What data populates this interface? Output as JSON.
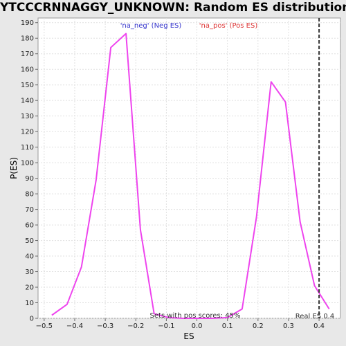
{
  "chart_data": {
    "type": "line",
    "title": "YTCCCRNNAGGY_UNKNOWN: Random ES distribution",
    "xlabel": "ES",
    "ylabel": "P(ES)",
    "xlim": [
      -0.52,
      0.47
    ],
    "ylim": [
      0,
      193
    ],
    "x_ticks": [
      -0.5,
      -0.4,
      -0.3,
      -0.2,
      -0.1,
      0.0,
      0.1,
      0.2,
      0.3,
      0.4
    ],
    "x_tick_labels": [
      "−0.5",
      "−0.4",
      "−0.3",
      "−0.2",
      "−0.1",
      "0.0",
      "0.1",
      "0.2",
      "0.3",
      "0.4"
    ],
    "y_ticks": [
      0,
      10,
      20,
      30,
      40,
      50,
      60,
      70,
      80,
      90,
      100,
      110,
      120,
      130,
      140,
      150,
      160,
      170,
      180,
      190
    ],
    "grid": true,
    "series": [
      {
        "color": "#ee44ee",
        "x": [
          -0.475,
          -0.425,
          -0.378,
          -0.33,
          -0.282,
          -0.232,
          -0.185,
          -0.14,
          -0.093,
          -0.045,
          0.0,
          0.05,
          0.1,
          0.148,
          0.195,
          0.243,
          0.29,
          0.338,
          0.385,
          0.433
        ],
        "y": [
          2,
          9,
          33,
          89,
          174,
          183,
          57,
          3,
          0.5,
          0,
          0,
          0,
          0.5,
          6,
          65,
          152,
          139,
          62,
          21,
          6
        ]
      }
    ],
    "annotations": {
      "neg_label": "'na_neg' (Neg ES)",
      "pos_label": "'na_pos' (Pos ES)",
      "sets_label": "Sets with pos scores: 45%",
      "real_es_label": "Real ES 0.4"
    },
    "real_es": 0.4,
    "colors": {
      "neg": "#3333cc",
      "pos": "#dd3333",
      "real_es_line": "#333333"
    }
  }
}
